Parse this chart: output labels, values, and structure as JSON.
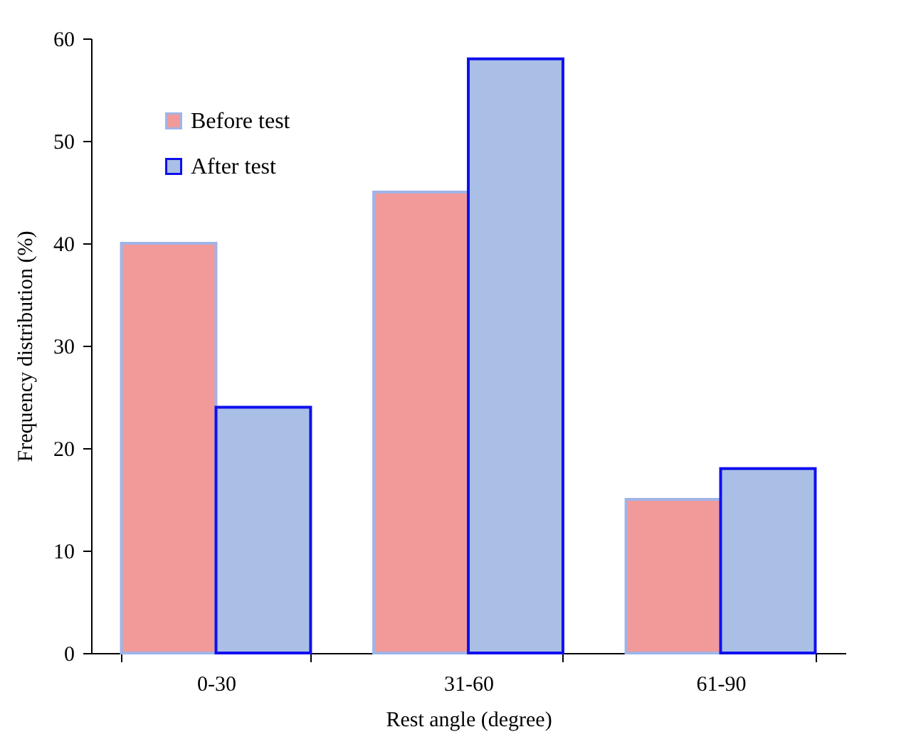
{
  "chart_data": {
    "type": "bar",
    "xlabel": "Rest angle (degree)",
    "ylabel": "Frequency distribution (%)",
    "categories": [
      "0-30",
      "31-60",
      "61-90"
    ],
    "series": [
      {
        "name": "Before test",
        "color": "#f29a9a",
        "values": [
          40,
          45,
          15
        ]
      },
      {
        "name": "After test",
        "color": "#a9bfe6",
        "values": [
          24,
          58,
          18
        ]
      }
    ],
    "ylim": [
      0,
      60
    ],
    "yticks": [
      0,
      10,
      20,
      30,
      40,
      50,
      60
    ],
    "grid": false,
    "legend": "top left"
  }
}
